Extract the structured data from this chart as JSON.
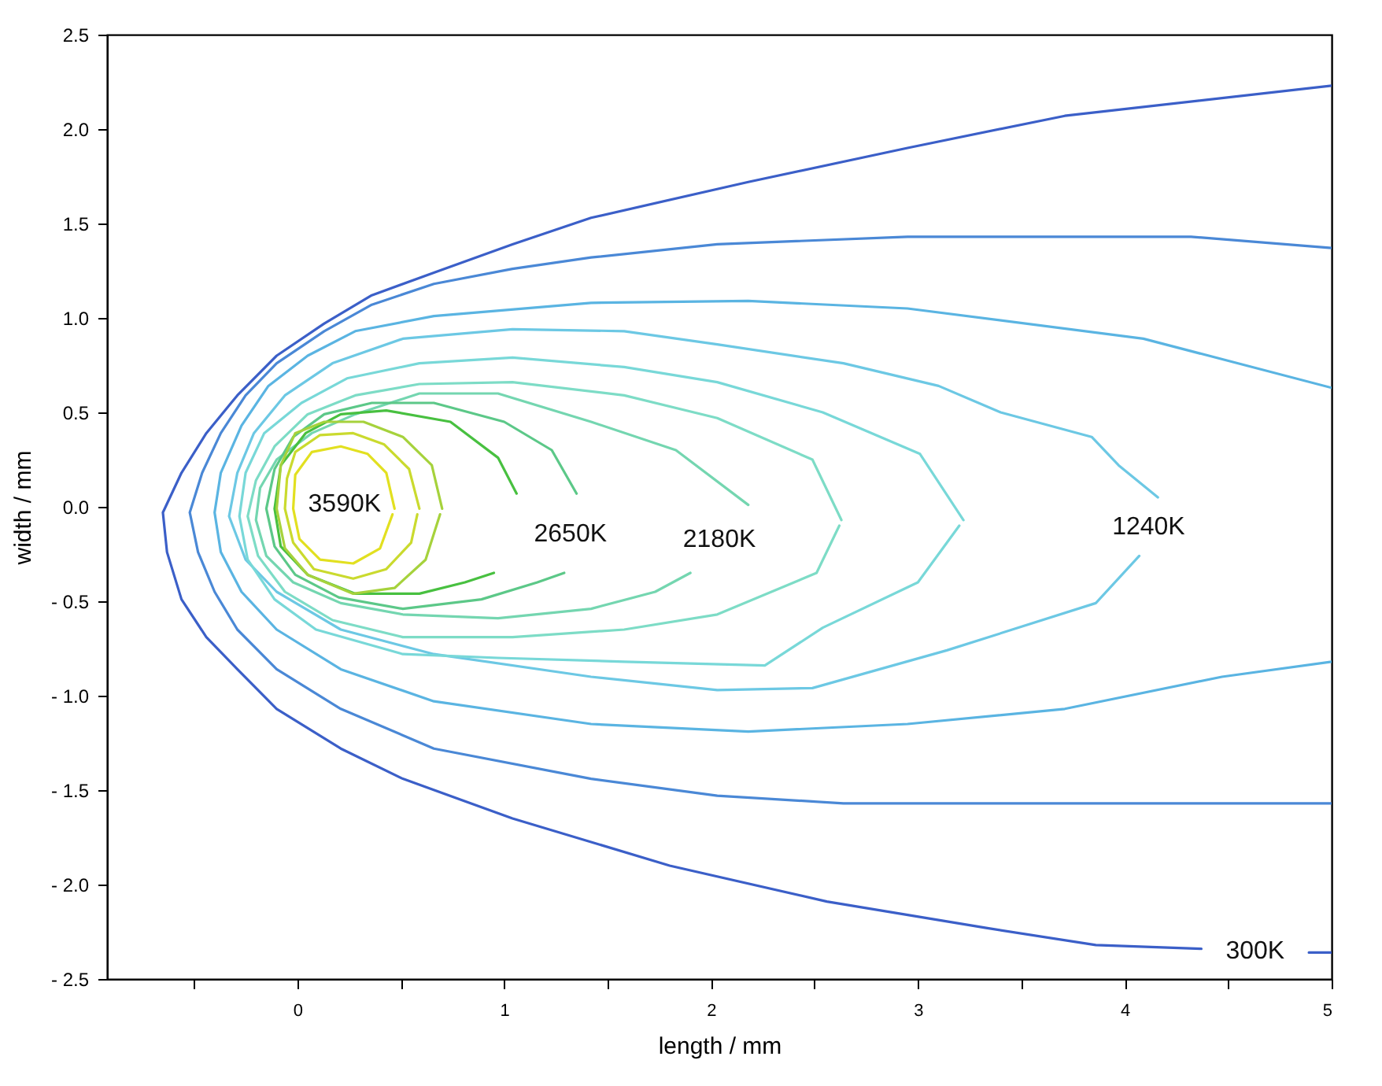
{
  "chart_data": {
    "type": "line",
    "xlabel": "length /  mm",
    "ylabel": "width /  mm",
    "xlim": [
      -0.92,
      5
    ],
    "ylim": [
      -2.5,
      2.5
    ],
    "xticks": [
      {
        "value": -0.5,
        "label": null
      },
      0,
      {
        "value": 0.5,
        "label": null
      },
      1,
      {
        "value": 1.5,
        "label": null
      },
      2,
      {
        "value": 2.5,
        "label": null
      },
      3,
      {
        "value": 3.5,
        "label": null
      },
      4,
      {
        "value": 4.5,
        "label": null
      },
      5
    ],
    "yticks": [
      {
        "value": -2.5,
        "label": "- 2.5"
      },
      {
        "value": -2,
        "label": "- 2.0"
      },
      {
        "value": -1.5,
        "label": "- 1.5"
      },
      {
        "value": -1,
        "label": "- 1.0"
      },
      {
        "value": -0.5,
        "label": "- 0.5"
      },
      {
        "value": 0,
        "label": "0.0"
      },
      {
        "value": 0.5,
        "label": "0.5"
      },
      {
        "value": 1,
        "label": "1.0"
      },
      {
        "value": 1.5,
        "label": "1.5"
      },
      {
        "value": 2,
        "label": "2.0"
      },
      {
        "value": 2.5,
        "label": "2.5"
      }
    ],
    "grid": false,
    "marker": "none",
    "line_style": "solid",
    "series": [
      {
        "name": "300K",
        "color": "#3b5fc8",
        "x": [
          5,
          3.71,
          2.95,
          2.18,
          1.42,
          1.04,
          0.66,
          0.36,
          0.13,
          -0.1,
          -0.29,
          -0.44,
          -0.56,
          -0.65,
          -0.63,
          -0.56,
          -0.44,
          -0.29,
          -0.1,
          0.21,
          0.51,
          1.04,
          1.8,
          2.56,
          3.33,
          3.86,
          4.37,
          4.6,
          4.89,
          5
        ],
        "values": [
          2.23,
          2.07,
          1.9,
          1.72,
          1.53,
          1.39,
          1.24,
          1.12,
          0.97,
          0.8,
          0.59,
          0.39,
          0.18,
          -0.03,
          -0.24,
          -0.49,
          -0.69,
          -0.86,
          -1.07,
          -1.28,
          -1.44,
          -1.65,
          -1.9,
          -2.09,
          -2.23,
          -2.32,
          -2.34,
          null,
          -2.36,
          -2.36
        ]
      },
      {
        "color": "#4a88d6",
        "x": [
          5,
          4.32,
          2.95,
          2.03,
          1.42,
          1.04,
          0.66,
          0.36,
          0.13,
          -0.1,
          -0.25,
          -0.37,
          -0.46,
          -0.52,
          -0.48,
          -0.4,
          -0.29,
          -0.1,
          0.21,
          0.66,
          1.42,
          2.03,
          2.64,
          5
        ],
        "values": [
          1.37,
          1.43,
          1.43,
          1.39,
          1.32,
          1.26,
          1.18,
          1.07,
          0.93,
          0.76,
          0.59,
          0.39,
          0.18,
          -0.03,
          -0.24,
          -0.45,
          -0.65,
          -0.86,
          -1.07,
          -1.28,
          -1.44,
          -1.53,
          -1.57,
          -1.57
        ]
      },
      {
        "color": "#5ab4e2",
        "x": [
          5,
          4.09,
          2.95,
          2.18,
          1.42,
          0.66,
          0.28,
          0.05,
          -0.14,
          -0.27,
          -0.37,
          -0.4,
          -0.37,
          -0.27,
          -0.1,
          0.21,
          0.66,
          1.42,
          2.18,
          2.95,
          3.71,
          4.47,
          5
        ],
        "values": [
          0.63,
          0.89,
          1.05,
          1.09,
          1.08,
          1.01,
          0.93,
          0.8,
          0.64,
          0.43,
          0.18,
          -0.03,
          -0.24,
          -0.45,
          -0.65,
          -0.86,
          -1.03,
          -1.15,
          -1.19,
          -1.15,
          -1.07,
          -0.9,
          -0.82
        ]
      },
      {
        "name": "1240K",
        "color": "#6cc8e4",
        "x": [
          4.16,
          3.97,
          3.84,
          3.4,
          3.1,
          2.64,
          2.03,
          1.58,
          1.04,
          0.51,
          0.17,
          -0.06,
          -0.21,
          -0.29,
          -0.33,
          -0.25,
          -0.1,
          0.21,
          0.66,
          1.42,
          2.03,
          2.49,
          3.14,
          3.86,
          4.07
        ],
        "values": [
          0.05,
          0.22,
          0.37,
          0.5,
          0.64,
          0.76,
          0.86,
          0.93,
          0.94,
          0.89,
          0.76,
          0.59,
          0.39,
          0.18,
          -0.05,
          -0.28,
          -0.45,
          -0.65,
          -0.78,
          -0.9,
          -0.97,
          -0.96,
          -0.76,
          -0.51,
          -0.26
        ]
      },
      {
        "color": "#78d8d8",
        "x": [
          3.22,
          3.01,
          2.54,
          2.03,
          1.58,
          1.04,
          0.59,
          0.24,
          0.02,
          -0.16,
          -0.25,
          -0.28,
          -0.24,
          -0.11,
          0.09,
          0.51,
          0.97,
          1.58,
          2.26,
          2.54,
          3,
          3.2
        ],
        "values": [
          -0.07,
          0.28,
          0.5,
          0.66,
          0.74,
          0.79,
          0.76,
          0.68,
          0.55,
          0.39,
          0.18,
          -0.05,
          -0.28,
          -0.49,
          -0.65,
          -0.78,
          -0.8,
          -0.82,
          -0.84,
          -0.64,
          -0.4,
          -0.1
        ]
      },
      {
        "color": "#7ddcc6",
        "x": [
          2.63,
          2.49,
          2.03,
          1.58,
          1.04,
          0.59,
          0.28,
          0.05,
          -0.11,
          -0.2,
          -0.24,
          -0.19,
          -0.06,
          0.17,
          0.51,
          1.04,
          1.58,
          2.03,
          2.51,
          2.62
        ],
        "values": [
          -0.07,
          0.25,
          0.47,
          0.59,
          0.66,
          0.65,
          0.59,
          0.49,
          0.32,
          0.14,
          -0.05,
          -0.26,
          -0.45,
          -0.6,
          -0.69,
          -0.69,
          -0.65,
          -0.57,
          -0.35,
          -0.1
        ]
      },
      {
        "name": "2180K",
        "color": "#74d6b0",
        "x": [
          2.18,
          1.83,
          1.42,
          0.97,
          0.59,
          0.28,
          0.07,
          -0.1,
          -0.18,
          -0.2,
          -0.15,
          -0.02,
          0.21,
          0.51,
          0.97,
          1.42,
          1.73,
          1.9
        ],
        "values": [
          0.01,
          0.3,
          0.45,
          0.6,
          0.6,
          0.49,
          0.39,
          0.25,
          0.1,
          -0.07,
          -0.26,
          -0.4,
          -0.51,
          -0.57,
          -0.59,
          -0.54,
          -0.45,
          -0.35
        ]
      },
      {
        "name": "2650K",
        "color": "#5cc888",
        "x": [
          1.35,
          1.23,
          1,
          0.66,
          0.36,
          0.13,
          -0.02,
          -0.11,
          -0.15,
          -0.11,
          -0.01,
          0.2,
          0.51,
          0.89,
          1.16,
          1.29
        ],
        "values": [
          0.07,
          0.3,
          0.45,
          0.55,
          0.55,
          0.49,
          0.37,
          0.2,
          -0.01,
          -0.21,
          -0.36,
          -0.48,
          -0.54,
          -0.49,
          -0.4,
          -0.35
        ]
      },
      {
        "color": "#48c040",
        "x": [
          1.06,
          0.97,
          0.74,
          0.43,
          0.21,
          0.04,
          -0.08,
          -0.11,
          -0.08,
          0.05,
          0.28,
          0.59,
          0.81,
          0.95
        ],
        "values": [
          0.07,
          0.26,
          0.45,
          0.51,
          0.49,
          0.39,
          0.22,
          -0.01,
          -0.21,
          -0.36,
          -0.46,
          -0.46,
          -0.4,
          -0.35
        ]
      },
      {
        "color": "#a6d23c",
        "x": [
          0.7,
          0.65,
          0.51,
          0.32,
          0.13,
          -0.01,
          -0.08,
          -0.1,
          -0.06,
          0.05,
          0.27,
          0.47,
          0.62,
          0.69
        ],
        "values": [
          -0.01,
          0.22,
          0.37,
          0.45,
          0.45,
          0.39,
          0.22,
          -0.01,
          -0.22,
          -0.36,
          -0.46,
          -0.43,
          -0.28,
          -0.04
        ]
      },
      {
        "color": "#cada2e",
        "x": [
          0.59,
          0.54,
          0.42,
          0.27,
          0.11,
          -0.01,
          -0.05,
          -0.06,
          -0.02,
          0.08,
          0.27,
          0.43,
          0.55,
          0.58
        ],
        "values": [
          -0.01,
          0.2,
          0.33,
          0.39,
          0.38,
          0.29,
          0.15,
          -0.01,
          -0.19,
          -0.33,
          -0.38,
          -0.33,
          -0.19,
          -0.04
        ]
      },
      {
        "name": "3590K",
        "color": "#e2e020",
        "x": [
          0.47,
          0.43,
          0.34,
          0.21,
          0.07,
          -0.01,
          -0.02,
          0.01,
          0.11,
          0.27,
          0.4,
          0.46
        ],
        "values": [
          -0.01,
          0.18,
          0.28,
          0.32,
          0.29,
          0.17,
          -0.01,
          -0.17,
          -0.28,
          -0.3,
          -0.22,
          -0.04
        ]
      }
    ]
  }
}
